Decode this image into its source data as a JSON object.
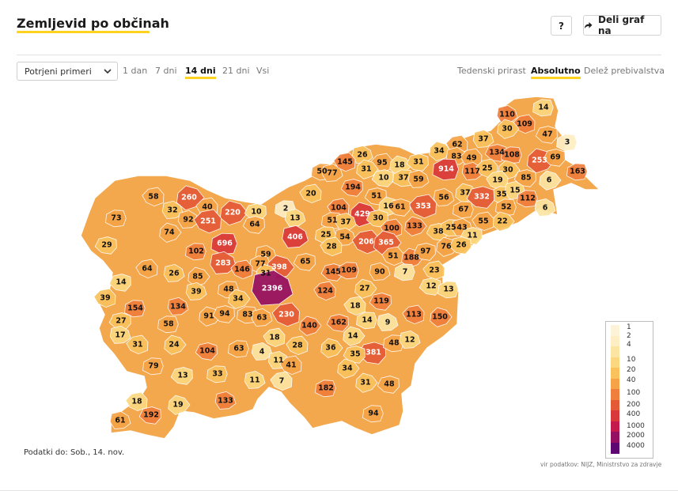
{
  "header": {
    "title": "Zemljevid po občinah",
    "help_label": "?",
    "share_label": "Deli graf na",
    "share_icon": "share-arrow-icon"
  },
  "controls": {
    "select_value": "Potrjeni primeri",
    "ranges": [
      {
        "label": "1 dan",
        "active": false
      },
      {
        "label": "7 dni",
        "active": false
      },
      {
        "label": "14 dni",
        "active": true
      },
      {
        "label": "21 dni",
        "active": false
      },
      {
        "label": "Vsi",
        "active": false
      }
    ],
    "modes": [
      {
        "label": "Tedenski prirast",
        "active": false
      },
      {
        "label": "Absolutno",
        "active": true
      },
      {
        "label": "Delež prebivalstva",
        "active": false
      }
    ]
  },
  "legend": {
    "stops": [
      {
        "label": "1",
        "color": "#fdf3d8"
      },
      {
        "label": "2",
        "color": "#fdeec4"
      },
      {
        "label": "4",
        "color": "#fce5a3"
      },
      {
        "label": "10",
        "color": "#fbd77f"
      },
      {
        "label": "20",
        "color": "#f9c25d"
      },
      {
        "label": "40",
        "color": "#f6a347"
      },
      {
        "label": "100",
        "color": "#f07e3c"
      },
      {
        "label": "200",
        "color": "#e45a37"
      },
      {
        "label": "400",
        "color": "#d9383a"
      },
      {
        "label": "1000",
        "color": "#c41a4e"
      },
      {
        "label": "2000",
        "color": "#951062"
      },
      {
        "label": "4000",
        "color": "#5d0770"
      }
    ]
  },
  "map": {
    "outline_color": "#f3a84e",
    "municipalities": [
      {
        "label": "14"
      },
      {
        "label": "110"
      },
      {
        "label": "109"
      },
      {
        "label": "30"
      },
      {
        "label": "47"
      },
      {
        "label": "3"
      },
      {
        "label": "37"
      },
      {
        "label": "62"
      },
      {
        "label": "34"
      },
      {
        "label": "134"
      },
      {
        "label": "108"
      },
      {
        "label": "83"
      },
      {
        "label": "49"
      },
      {
        "label": "253"
      },
      {
        "label": "69"
      },
      {
        "label": "914"
      },
      {
        "label": "117"
      },
      {
        "label": "25"
      },
      {
        "label": "30"
      },
      {
        "label": "85"
      },
      {
        "label": "163"
      },
      {
        "label": "26"
      },
      {
        "label": "95"
      },
      {
        "label": "18"
      },
      {
        "label": "31"
      },
      {
        "label": "50"
      },
      {
        "label": "77"
      },
      {
        "label": "145"
      },
      {
        "label": "31"
      },
      {
        "label": "10"
      },
      {
        "label": "37"
      },
      {
        "label": "59"
      },
      {
        "label": "19"
      },
      {
        "label": "6"
      },
      {
        "label": "194"
      },
      {
        "label": "35"
      },
      {
        "label": "15"
      },
      {
        "label": "20"
      },
      {
        "label": "37"
      },
      {
        "label": "332"
      },
      {
        "label": "112"
      },
      {
        "label": "56"
      },
      {
        "label": "58"
      },
      {
        "label": "260"
      },
      {
        "label": "51"
      },
      {
        "label": "52"
      },
      {
        "label": "6"
      },
      {
        "label": "353"
      },
      {
        "label": "16"
      },
      {
        "label": "61"
      },
      {
        "label": "67"
      },
      {
        "label": "32"
      },
      {
        "label": "40"
      },
      {
        "label": "220"
      },
      {
        "label": "10"
      },
      {
        "label": "2"
      },
      {
        "label": "13"
      },
      {
        "label": "104"
      },
      {
        "label": "429"
      },
      {
        "label": "30"
      },
      {
        "label": "73"
      },
      {
        "label": "92"
      },
      {
        "label": "251"
      },
      {
        "label": "22"
      },
      {
        "label": "64"
      },
      {
        "label": "51"
      },
      {
        "label": "37"
      },
      {
        "label": "100"
      },
      {
        "label": "133"
      },
      {
        "label": "38"
      },
      {
        "label": "25"
      },
      {
        "label": "43"
      },
      {
        "label": "55"
      },
      {
        "label": "74"
      },
      {
        "label": "11"
      },
      {
        "label": "25"
      },
      {
        "label": "54"
      },
      {
        "label": "206"
      },
      {
        "label": "365"
      },
      {
        "label": "29"
      },
      {
        "label": "696"
      },
      {
        "label": "406"
      },
      {
        "label": "28"
      },
      {
        "label": "76"
      },
      {
        "label": "26"
      },
      {
        "label": "102"
      },
      {
        "label": "59"
      },
      {
        "label": "51"
      },
      {
        "label": "188"
      },
      {
        "label": "97"
      },
      {
        "label": "77"
      },
      {
        "label": "283"
      },
      {
        "label": "64"
      },
      {
        "label": "398"
      },
      {
        "label": "65"
      },
      {
        "label": "7"
      },
      {
        "label": "26"
      },
      {
        "label": "146"
      },
      {
        "label": "31"
      },
      {
        "label": "145"
      },
      {
        "label": "109"
      },
      {
        "label": "90"
      },
      {
        "label": "23"
      },
      {
        "label": "85"
      },
      {
        "label": "14"
      },
      {
        "label": "48"
      },
      {
        "label": "2396"
      },
      {
        "label": "124"
      },
      {
        "label": "27"
      },
      {
        "label": "12"
      },
      {
        "label": "13"
      },
      {
        "label": "39"
      },
      {
        "label": "39"
      },
      {
        "label": "34"
      },
      {
        "label": "119"
      },
      {
        "label": "154"
      },
      {
        "label": "134"
      },
      {
        "label": "18"
      },
      {
        "label": "91"
      },
      {
        "label": "94"
      },
      {
        "label": "83"
      },
      {
        "label": "63"
      },
      {
        "label": "230"
      },
      {
        "label": "140"
      },
      {
        "label": "162"
      },
      {
        "label": "14"
      },
      {
        "label": "9"
      },
      {
        "label": "113"
      },
      {
        "label": "150"
      },
      {
        "label": "27"
      },
      {
        "label": "58"
      },
      {
        "label": "17"
      },
      {
        "label": "18"
      },
      {
        "label": "14"
      },
      {
        "label": "381"
      },
      {
        "label": "48"
      },
      {
        "label": "12"
      },
      {
        "label": "31"
      },
      {
        "label": "24"
      },
      {
        "label": "104"
      },
      {
        "label": "63"
      },
      {
        "label": "4"
      },
      {
        "label": "28"
      },
      {
        "label": "36"
      },
      {
        "label": "35"
      },
      {
        "label": "79"
      },
      {
        "label": "11"
      },
      {
        "label": "41"
      },
      {
        "label": "34"
      },
      {
        "label": "13"
      },
      {
        "label": "33"
      },
      {
        "label": "11"
      },
      {
        "label": "7"
      },
      {
        "label": "31"
      },
      {
        "label": "48"
      },
      {
        "label": "182"
      },
      {
        "label": "133"
      },
      {
        "label": "18"
      },
      {
        "label": "19"
      },
      {
        "label": "192"
      },
      {
        "label": "94"
      },
      {
        "label": "61"
      }
    ]
  },
  "footer": {
    "data_date": "Podatki do: Sob., 14. nov.",
    "source": "vir podatkov: NIJZ, Ministrstvo za zdravje"
  }
}
